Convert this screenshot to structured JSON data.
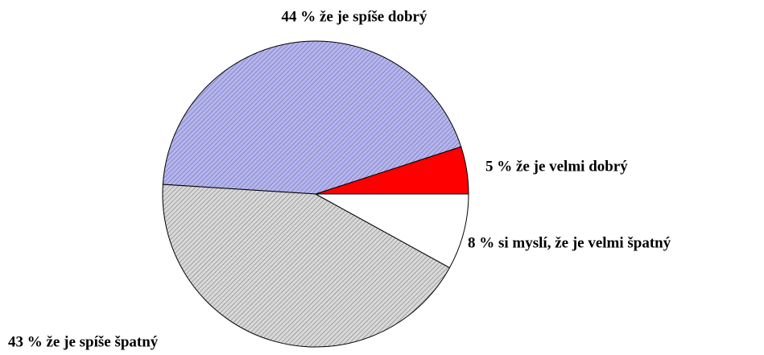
{
  "chart_data": {
    "type": "pie",
    "values": [
      5,
      44,
      43,
      8
    ],
    "value_labels": [
      "5 % že je velmi dobrý",
      "44 % že je spíše dobrý",
      "43 % že je spíše špatný",
      "8 % si myslí, že je velmi špatný"
    ],
    "colors": [
      "#ff0000",
      "#b4b4f4",
      "#d8d8d8",
      "#ffffff"
    ],
    "hatch": [
      false,
      true,
      true,
      false
    ]
  }
}
